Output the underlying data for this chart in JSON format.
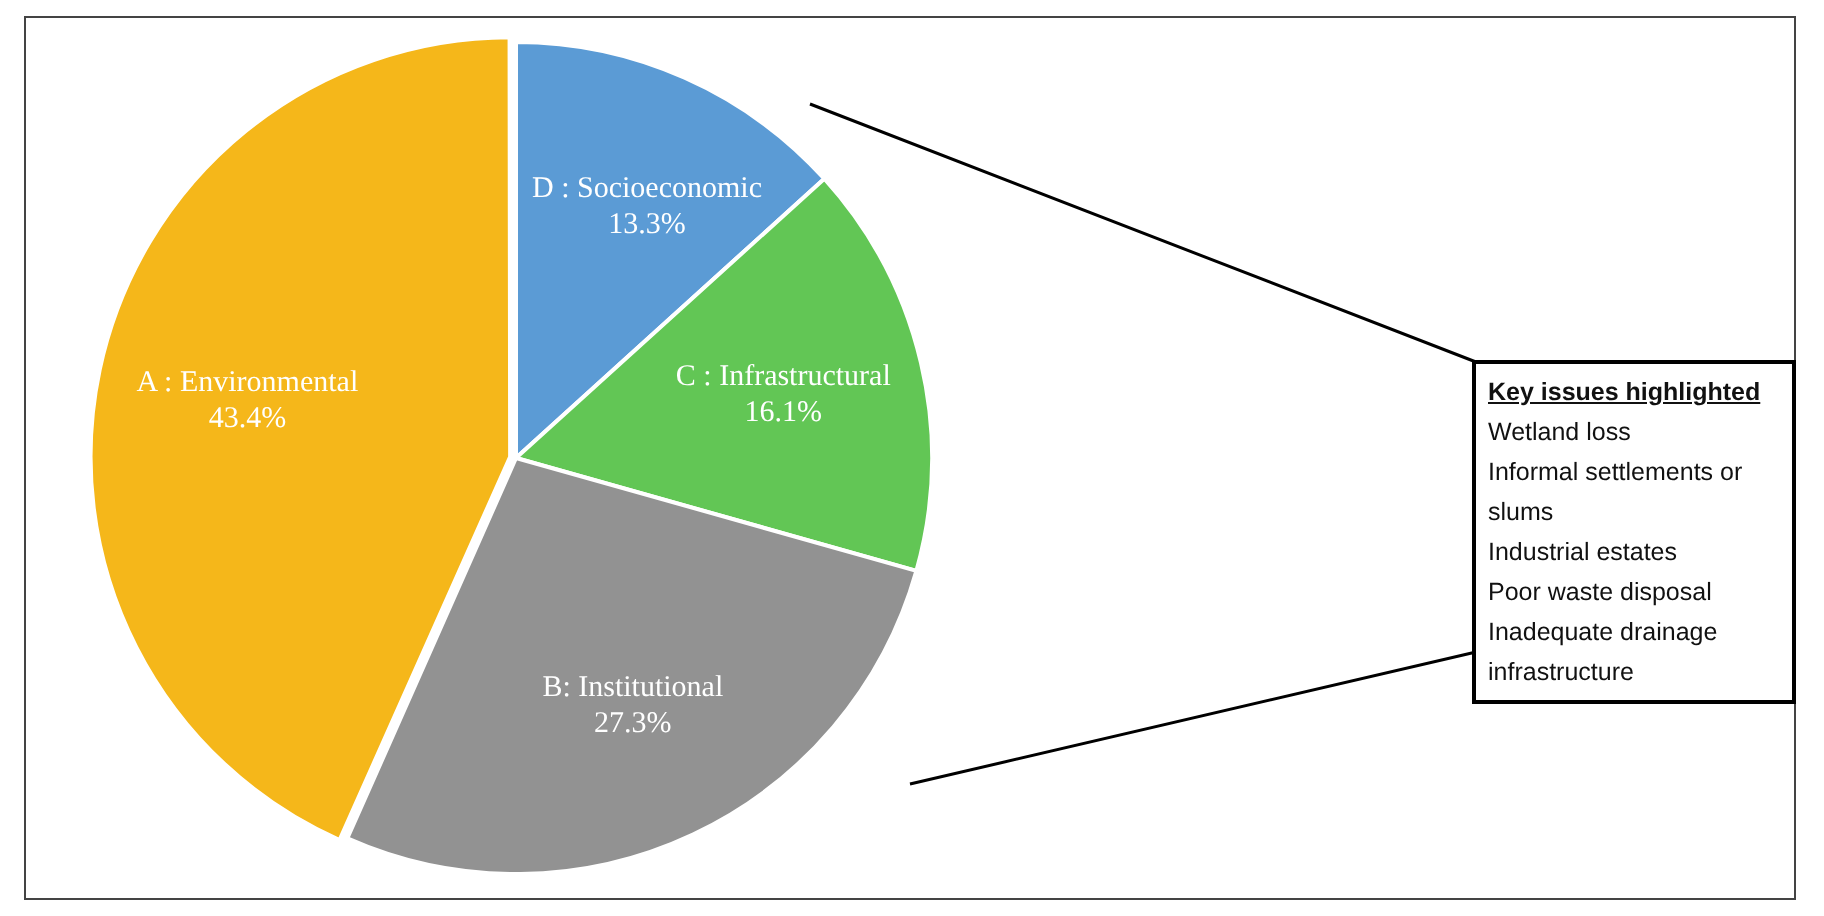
{
  "chart_data": {
    "type": "pie",
    "categories": [
      "D : Socioeconomic",
      "C : Infrastructural",
      "B: Institutional",
      "A : Environmental"
    ],
    "values": [
      13.3,
      16.1,
      27.3,
      43.4
    ],
    "colors": [
      "#5b9bd5",
      "#62c655",
      "#929292",
      "#f5b71a"
    ],
    "value_labels": [
      "13.3%",
      "16.1%",
      "27.3%",
      "43.4%"
    ],
    "legend": false,
    "annotations": [
      "Key issues highlighted",
      "Wetland loss",
      "Informal settlements or slums",
      "Industrial estates",
      "Poor waste disposal",
      "Inadequate drainage infrastructure"
    ]
  }
}
